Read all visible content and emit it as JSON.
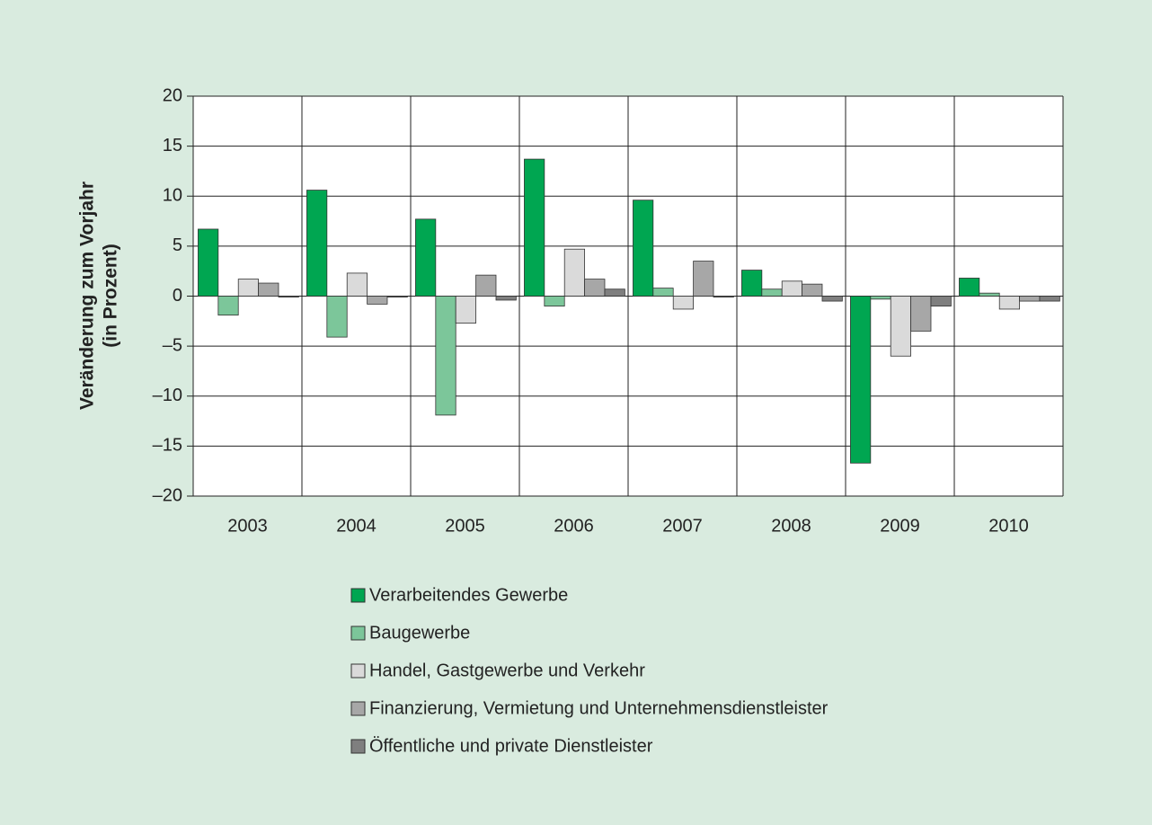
{
  "chart_data": {
    "type": "bar",
    "y_label": [
      "Veränderung zum Vorjahr",
      "(in Prozent)"
    ],
    "categories": [
      "2003",
      "2004",
      "2005",
      "2006",
      "2007",
      "2008",
      "2009",
      "2010"
    ],
    "series": [
      {
        "name": "Verarbeitendes Gewerbe",
        "color": "#00a651",
        "values": [
          6.7,
          10.6,
          7.7,
          13.7,
          9.6,
          2.6,
          -16.7,
          1.8
        ]
      },
      {
        "name": "Baugewerbe",
        "color": "#7cc69a",
        "values": [
          -1.9,
          -4.1,
          -11.9,
          -1.0,
          0.8,
          0.7,
          -0.3,
          0.3
        ]
      },
      {
        "name": "Handel, Gastgewerbe und Verkehr",
        "color": "#dadada",
        "values": [
          1.7,
          2.3,
          -2.7,
          4.7,
          -1.3,
          1.5,
          -6.0,
          -1.3
        ]
      },
      {
        "name": "Finanzierung, Vermietung und Unternehmensdienstleister",
        "color": "#a7a7a7",
        "values": [
          1.3,
          -0.8,
          2.1,
          1.7,
          3.5,
          1.2,
          -3.5,
          -0.5
        ]
      },
      {
        "name": "Öffentliche und private Dienstleister",
        "color": "#7f7f7f",
        "values": [
          -0.1,
          -0.1,
          -0.4,
          0.7,
          -0.1,
          -0.5,
          -1.0,
          -0.5
        ]
      }
    ],
    "ylim": [
      -20,
      20
    ],
    "yticks": [
      {
        "value": -20,
        "label": "–20"
      },
      {
        "value": -15,
        "label": "–15"
      },
      {
        "value": -10,
        "label": "–10"
      },
      {
        "value": -5,
        "label": "–5"
      },
      0,
      5,
      10,
      15,
      20
    ],
    "grid": true
  }
}
